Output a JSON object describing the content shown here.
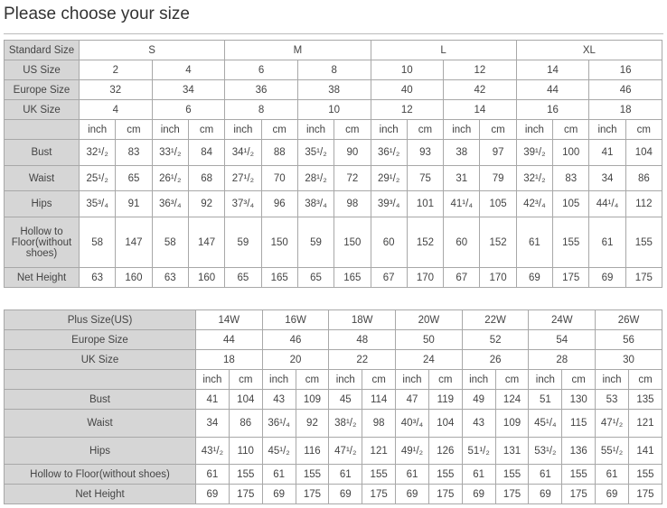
{
  "title": "Please choose your size",
  "standard_table": {
    "header_label": "Standard Size",
    "groups": [
      "S",
      "M",
      "L",
      "XL"
    ],
    "rows": [
      {
        "label": "US Size",
        "values": [
          "2",
          "4",
          "6",
          "8",
          "10",
          "12",
          "14",
          "16"
        ]
      },
      {
        "label": "Europe Size",
        "values": [
          "32",
          "34",
          "36",
          "38",
          "40",
          "42",
          "44",
          "46"
        ]
      },
      {
        "label": "UK Size",
        "values": [
          "4",
          "6",
          "8",
          "10",
          "12",
          "14",
          "16",
          "18"
        ]
      }
    ],
    "unit_labels": [
      "inch",
      "cm"
    ],
    "measures": [
      {
        "label": "Bust",
        "values": [
          "32¹/₂",
          "83",
          "33¹/₂",
          "84",
          "34¹/₂",
          "88",
          "35¹/₂",
          "90",
          "36¹/₂",
          "93",
          "38",
          "97",
          "39¹/₂",
          "100",
          "41",
          "104"
        ]
      },
      {
        "label": "Waist",
        "values": [
          "25¹/₂",
          "65",
          "26¹/₂",
          "68",
          "27¹/₂",
          "70",
          "28¹/₂",
          "72",
          "29¹/₂",
          "75",
          "31",
          "79",
          "32¹/₂",
          "83",
          "34",
          "86"
        ]
      },
      {
        "label": "Hips",
        "values": [
          "35³/₄",
          "91",
          "36³/₄",
          "92",
          "37³/₄",
          "96",
          "38³/₄",
          "98",
          "39³/₄",
          "101",
          "41¹/₄",
          "105",
          "42³/₄",
          "105",
          "44¹/₄",
          "112"
        ]
      },
      {
        "label": "Hollow to Floor(without shoes)",
        "values": [
          "58",
          "147",
          "58",
          "147",
          "59",
          "150",
          "59",
          "150",
          "60",
          "152",
          "60",
          "152",
          "61",
          "155",
          "61",
          "155"
        ]
      },
      {
        "label": "Net Height",
        "values": [
          "63",
          "160",
          "63",
          "160",
          "65",
          "165",
          "65",
          "165",
          "67",
          "170",
          "67",
          "170",
          "69",
          "175",
          "69",
          "175"
        ]
      }
    ]
  },
  "plus_table": {
    "rows": [
      {
        "label": "Plus Size(US)",
        "values": [
          "14W",
          "16W",
          "18W",
          "20W",
          "22W",
          "24W",
          "26W"
        ]
      },
      {
        "label": "Europe Size",
        "values": [
          "44",
          "46",
          "48",
          "50",
          "52",
          "54",
          "56"
        ]
      },
      {
        "label": "UK Size",
        "values": [
          "18",
          "20",
          "22",
          "24",
          "26",
          "28",
          "30"
        ]
      }
    ],
    "unit_labels": [
      "inch",
      "cm"
    ],
    "measures": [
      {
        "label": "Bust",
        "values": [
          "41",
          "104",
          "43",
          "109",
          "45",
          "114",
          "47",
          "119",
          "49",
          "124",
          "51",
          "130",
          "53",
          "135"
        ]
      },
      {
        "label": "Waist",
        "values": [
          "34",
          "86",
          "36¹/₄",
          "92",
          "38¹/₂",
          "98",
          "40³/₄",
          "104",
          "43",
          "109",
          "45¹/₄",
          "115",
          "47¹/₂",
          "121"
        ]
      },
      {
        "label": "Hips",
        "values": [
          "43¹/₂",
          "110",
          "45¹/₂",
          "116",
          "47¹/₂",
          "121",
          "49¹/₂",
          "126",
          "51¹/₂",
          "131",
          "53¹/₂",
          "136",
          "55¹/₂",
          "141"
        ]
      },
      {
        "label": "Hollow to Floor(without shoes)",
        "values": [
          "61",
          "155",
          "61",
          "155",
          "61",
          "155",
          "61",
          "155",
          "61",
          "155",
          "61",
          "155",
          "61",
          "155"
        ]
      },
      {
        "label": "Net Height",
        "values": [
          "69",
          "175",
          "69",
          "175",
          "69",
          "175",
          "69",
          "175",
          "69",
          "175",
          "69",
          "175",
          "69",
          "175"
        ]
      }
    ]
  }
}
